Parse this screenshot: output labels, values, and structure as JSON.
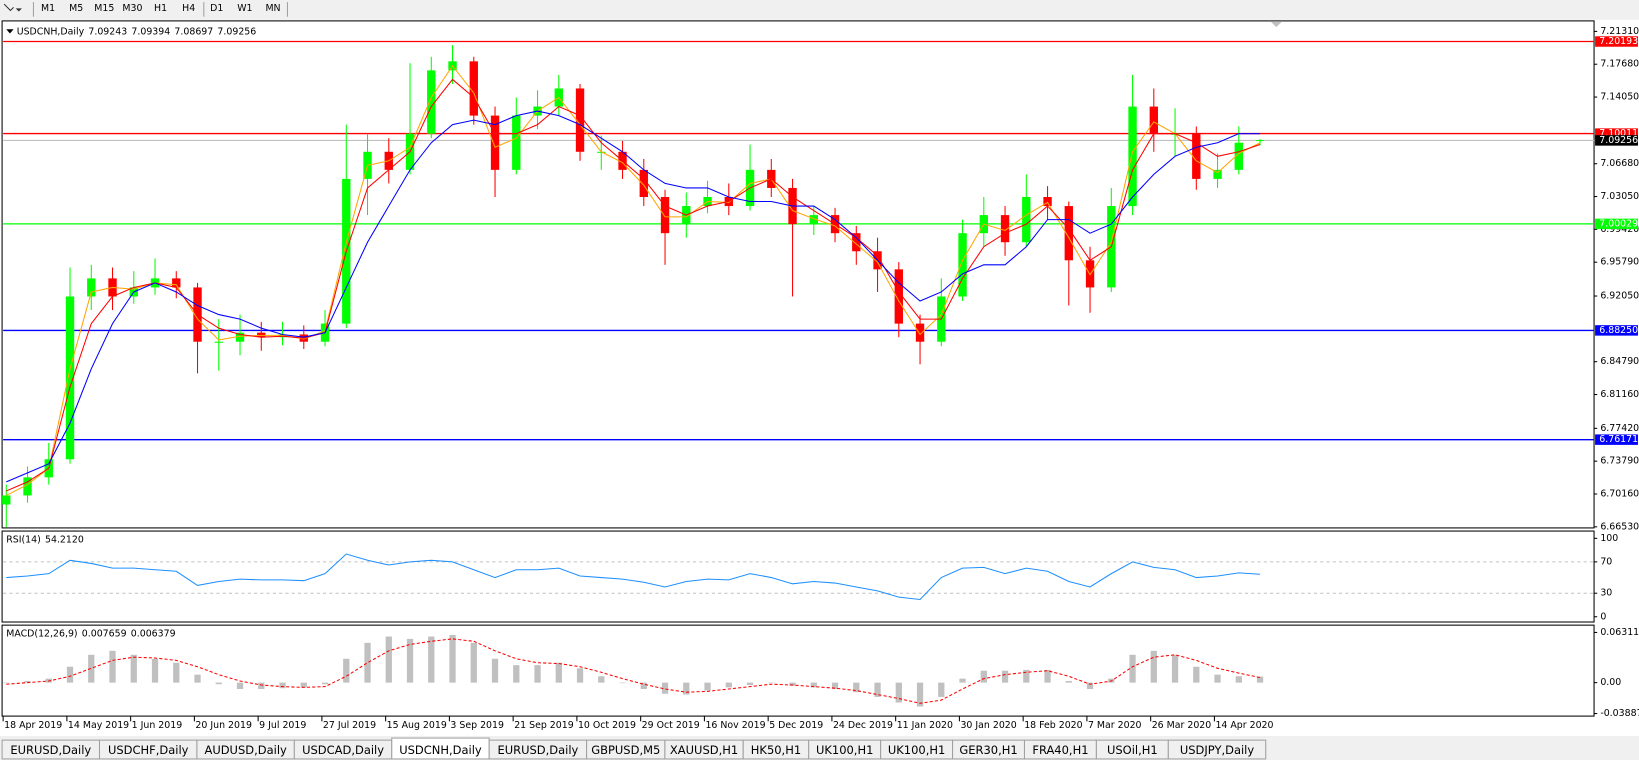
{
  "toolbar": {
    "timeframes": [
      "M1",
      "M5",
      "M15",
      "M30",
      "H1",
      "H4",
      "D1",
      "W1",
      "MN"
    ]
  },
  "chart_data": {
    "type": "candlestick",
    "symbol": "USDCNH,Daily",
    "header_values": [
      7.09243,
      7.09394,
      7.08697,
      7.09256
    ],
    "categories": [
      "18 Apr 2019",
      null,
      null,
      "14 May 2019",
      null,
      null,
      "1 Jun 2019",
      null,
      null,
      "20 Jun 2019",
      null,
      null,
      "9 Jul 2019",
      null,
      null,
      "27 Jul 2019",
      null,
      null,
      "15 Aug 2019",
      null,
      null,
      "3 Sep 2019",
      null,
      null,
      "21 Sep 2019",
      null,
      null,
      "10 Oct 2019",
      null,
      null,
      "29 Oct 2019",
      null,
      null,
      "16 Nov 2019",
      null,
      null,
      "5 Dec 2019",
      null,
      null,
      "24 Dec 2019",
      null,
      null,
      "11 Jan 2020",
      null,
      null,
      "30 Jan 2020",
      null,
      null,
      "18 Feb 2020",
      null,
      null,
      "7 Mar 2020",
      null,
      null,
      "26 Mar 2020",
      null,
      null,
      "14 Apr 2020",
      null,
      null
    ],
    "ohlc": [
      [
        6.69,
        6.712,
        6.665,
        6.7
      ],
      [
        6.7,
        6.732,
        6.692,
        6.72
      ],
      [
        6.72,
        6.758,
        6.712,
        6.74
      ],
      [
        6.74,
        6.952,
        6.735,
        6.92
      ],
      [
        6.92,
        6.955,
        6.905,
        6.94
      ],
      [
        6.94,
        6.952,
        6.905,
        6.92
      ],
      [
        6.92,
        6.948,
        6.912,
        6.93
      ],
      [
        6.93,
        6.962,
        6.922,
        6.94
      ],
      [
        6.94,
        6.948,
        6.918,
        6.93
      ],
      [
        6.93,
        6.935,
        6.835,
        6.87
      ],
      [
        6.87,
        6.895,
        6.838,
        6.87
      ],
      [
        6.87,
        6.9,
        6.855,
        6.88
      ],
      [
        6.88,
        6.892,
        6.86,
        6.875
      ],
      [
        6.875,
        6.892,
        6.866,
        6.878
      ],
      [
        6.878,
        6.888,
        6.862,
        6.87
      ],
      [
        6.87,
        6.905,
        6.865,
        6.89
      ],
      [
        6.89,
        7.11,
        6.885,
        7.05
      ],
      [
        7.05,
        7.1,
        7.01,
        7.08
      ],
      [
        7.08,
        7.095,
        7.045,
        7.06
      ],
      [
        7.06,
        7.178,
        7.055,
        7.1
      ],
      [
        7.1,
        7.185,
        7.095,
        7.17
      ],
      [
        7.17,
        7.198,
        7.155,
        7.18
      ],
      [
        7.18,
        7.185,
        7.11,
        7.12
      ],
      [
        7.12,
        7.13,
        7.03,
        7.06
      ],
      [
        7.06,
        7.14,
        7.055,
        7.12
      ],
      [
        7.12,
        7.148,
        7.105,
        7.13
      ],
      [
        7.13,
        7.165,
        7.12,
        7.15
      ],
      [
        7.15,
        7.155,
        7.07,
        7.08
      ],
      [
        7.08,
        7.098,
        7.06,
        7.08
      ],
      [
        7.08,
        7.092,
        7.05,
        7.06
      ],
      [
        7.06,
        7.072,
        7.02,
        7.03
      ],
      [
        7.03,
        7.038,
        6.955,
        6.99
      ],
      [
        7.0,
        7.035,
        6.985,
        7.02
      ],
      [
        7.02,
        7.048,
        7.012,
        7.03
      ],
      [
        7.03,
        7.045,
        7.01,
        7.02
      ],
      [
        7.02,
        7.088,
        7.015,
        7.06
      ],
      [
        7.06,
        7.072,
        7.03,
        7.04
      ],
      [
        7.04,
        7.05,
        6.92,
        7.0
      ],
      [
        7.0,
        7.02,
        6.988,
        7.01
      ],
      [
        7.01,
        7.018,
        6.98,
        6.99
      ],
      [
        6.99,
        6.998,
        6.955,
        6.97
      ],
      [
        6.97,
        6.985,
        6.925,
        6.95
      ],
      [
        6.95,
        6.958,
        6.875,
        6.89
      ],
      [
        6.89,
        6.9,
        6.845,
        6.87
      ],
      [
        6.87,
        6.94,
        6.865,
        6.92
      ],
      [
        6.92,
        7.005,
        6.915,
        6.99
      ],
      [
        6.99,
        7.03,
        6.975,
        7.01
      ],
      [
        7.01,
        7.02,
        6.965,
        6.98
      ],
      [
        6.98,
        7.055,
        6.975,
        7.03
      ],
      [
        7.03,
        7.042,
        7.005,
        7.02
      ],
      [
        7.02,
        7.025,
        6.91,
        6.96
      ],
      [
        6.96,
        6.975,
        6.902,
        6.93
      ],
      [
        6.93,
        7.04,
        6.925,
        7.02
      ],
      [
        7.02,
        7.165,
        7.01,
        7.13
      ],
      [
        7.13,
        7.15,
        7.08,
        7.1
      ],
      [
        7.1,
        7.128,
        7.075,
        7.1
      ],
      [
        7.1,
        7.108,
        7.038,
        7.05
      ],
      [
        7.05,
        7.078,
        7.04,
        7.06
      ],
      [
        7.06,
        7.108,
        7.055,
        7.09
      ],
      [
        7.092,
        7.094,
        7.087,
        7.093
      ]
    ],
    "bull_color": "#00ff00",
    "bear_color": "#ff0000",
    "ylim": [
      6.6641,
      7.2247
    ],
    "yticks": [
      {
        "value": 7.2131,
        "label": "7.21310"
      },
      {
        "value": 7.1768,
        "label": "7.17680"
      },
      {
        "value": 7.1405,
        "label": "7.14050"
      },
      {
        "value": 7.0668,
        "label": "7.06680"
      },
      {
        "value": 7.0305,
        "label": "7.03050"
      },
      {
        "value": 6.9942,
        "label": "6.99420"
      },
      {
        "value": 6.9579,
        "label": "6.95790"
      },
      {
        "value": 6.9205,
        "label": "6.92050"
      },
      {
        "value": 6.8479,
        "label": "6.84790"
      },
      {
        "value": 6.8116,
        "label": "6.81160"
      },
      {
        "value": 6.7742,
        "label": "6.77420"
      },
      {
        "value": 6.7379,
        "label": "6.73790"
      },
      {
        "value": 6.7016,
        "label": "6.70160"
      },
      {
        "value": 6.6653,
        "label": "6.66530"
      }
    ],
    "overlays": [
      {
        "color": "#ffa500",
        "values": [
          6.7,
          6.712,
          6.73,
          6.84,
          6.925,
          6.93,
          6.928,
          6.935,
          6.933,
          6.895,
          6.872,
          6.876,
          6.877,
          6.877,
          6.873,
          6.882,
          6.98,
          7.065,
          7.07,
          7.085,
          7.14,
          7.175,
          7.145,
          7.085,
          7.095,
          7.125,
          7.14,
          7.11,
          7.08,
          7.068,
          7.043,
          7.008,
          7.008,
          7.025,
          7.024,
          7.045,
          7.05,
          7.015,
          7.006,
          6.998,
          6.978,
          6.958,
          6.915,
          6.878,
          6.9,
          6.96,
          7.0,
          6.993,
          7.01,
          7.024,
          6.985,
          6.944,
          6.98,
          7.08,
          7.113,
          7.1,
          7.07,
          7.057,
          7.078,
          7.09
        ]
      },
      {
        "color": "#ff0000",
        "values": [
          6.705,
          6.715,
          6.73,
          6.82,
          6.89,
          6.92,
          6.93,
          6.935,
          6.93,
          6.9,
          6.885,
          6.878,
          6.875,
          6.876,
          6.874,
          6.88,
          6.97,
          7.04,
          7.06,
          7.08,
          7.13,
          7.16,
          7.14,
          7.1,
          7.1,
          7.11,
          7.13,
          7.12,
          7.09,
          7.07,
          7.05,
          7.02,
          7.01,
          7.02,
          7.025,
          7.04,
          7.05,
          7.03,
          7.015,
          7.0,
          6.985,
          6.965,
          6.925,
          6.895,
          6.895,
          6.94,
          6.975,
          6.99,
          7.0,
          7.02,
          6.995,
          6.96,
          6.975,
          7.06,
          7.1,
          7.1,
          7.09,
          7.075,
          7.08,
          7.088
        ]
      },
      {
        "color": "#0000ff",
        "values": [
          6.715,
          6.725,
          6.735,
          6.78,
          6.84,
          6.89,
          6.925,
          6.935,
          6.925,
          6.91,
          6.9,
          6.895,
          6.885,
          6.878,
          6.875,
          6.88,
          6.93,
          6.98,
          7.02,
          7.06,
          7.09,
          7.11,
          7.115,
          7.11,
          7.12,
          7.125,
          7.12,
          7.11,
          7.095,
          7.08,
          7.06,
          7.045,
          7.04,
          7.04,
          7.03,
          7.025,
          7.025,
          7.02,
          7.02,
          7.005,
          6.985,
          6.96,
          6.935,
          6.915,
          6.925,
          6.945,
          6.955,
          6.955,
          6.975,
          7.005,
          7.005,
          6.99,
          7.0,
          7.03,
          7.055,
          7.075,
          7.085,
          7.09,
          7.1,
          7.1
        ]
      }
    ],
    "levels": [
      {
        "value": 7.20193,
        "color": "#ff0000"
      },
      {
        "value": 7.10011,
        "color": "#ff0000"
      },
      {
        "value": 7.00029,
        "label": "7.00029",
        "color": "#00ff00"
      },
      {
        "value": 6.8825,
        "label": "6.88250",
        "color": "#0000ff"
      },
      {
        "value": 6.76171,
        "color": "#0000ff"
      }
    ],
    "bid": 7.09256,
    "rsi": {
      "title": "RSI(14)",
      "current": {
        "value": 54.212,
        "label": "54.2120"
      },
      "color": "#1e90ff",
      "values": [
        50,
        52,
        55,
        72,
        68,
        62,
        62,
        60,
        58,
        40,
        45,
        48,
        47,
        47,
        46,
        55,
        80,
        72,
        66,
        70,
        72,
        70,
        60,
        50,
        60,
        60,
        62,
        52,
        50,
        48,
        44,
        38,
        45,
        48,
        47,
        55,
        50,
        42,
        45,
        43,
        38,
        33,
        25,
        22,
        50,
        62,
        63,
        55,
        62,
        58,
        45,
        38,
        55,
        70,
        63,
        60,
        50,
        52,
        56,
        54.2
      ],
      "ylim": [
        -6.7,
        109.3
      ],
      "yticks": [
        100,
        70,
        30,
        0
      ],
      "levels": [
        70,
        30
      ]
    },
    "macd": {
      "title": "MACD(12,26,9)",
      "current": [
        0.007659,
        0.006379
      ],
      "hist_color": "#c0c0c0",
      "signal_color": "#ff0000",
      "histogram": [
        0.0,
        0.002,
        0.005,
        0.02,
        0.035,
        0.04,
        0.035,
        0.03,
        0.025,
        0.01,
        -0.002,
        -0.008,
        -0.008,
        -0.007,
        -0.006,
        -0.002,
        0.03,
        0.05,
        0.058,
        0.055,
        0.058,
        0.06,
        0.05,
        0.03,
        0.022,
        0.022,
        0.025,
        0.018,
        0.008,
        0.0,
        -0.008,
        -0.014,
        -0.015,
        -0.01,
        -0.006,
        -0.003,
        0.0,
        -0.004,
        -0.006,
        -0.008,
        -0.012,
        -0.018,
        -0.025,
        -0.03,
        -0.018,
        0.005,
        0.015,
        0.015,
        0.016,
        0.016,
        0.002,
        -0.008,
        0.005,
        0.035,
        0.04,
        0.035,
        0.02,
        0.01,
        0.008,
        0.0077
      ],
      "signal": [
        -0.002,
        0.0,
        0.002,
        0.008,
        0.018,
        0.028,
        0.032,
        0.031,
        0.028,
        0.02,
        0.01,
        0.002,
        -0.003,
        -0.005,
        -0.006,
        -0.005,
        0.008,
        0.025,
        0.04,
        0.048,
        0.052,
        0.055,
        0.052,
        0.04,
        0.03,
        0.025,
        0.024,
        0.02,
        0.013,
        0.005,
        -0.002,
        -0.008,
        -0.012,
        -0.011,
        -0.008,
        -0.005,
        -0.002,
        -0.003,
        -0.005,
        -0.007,
        -0.01,
        -0.015,
        -0.02,
        -0.026,
        -0.022,
        -0.008,
        0.005,
        0.01,
        0.013,
        0.015,
        0.008,
        -0.002,
        0.002,
        0.02,
        0.032,
        0.035,
        0.028,
        0.018,
        0.012,
        0.0064
      ],
      "ylim": [
        -0.0421,
        0.0723
      ],
      "yticks": [
        0.063113,
        {
          "value": 0,
          "label": "0.00"
        },
        -0.038872
      ]
    }
  },
  "tabs": {
    "items": [
      "EURUSD,Daily",
      "USDCHF,Daily",
      "AUDUSD,Daily",
      "USDCAD,Daily",
      "USDCNH,Daily",
      "EURUSD,Daily",
      "GBPUSD,M5",
      "XAUUSD,H1",
      "HK50,H1",
      "UK100,H1",
      "UK100,H1",
      "GER30,H1",
      "FRA40,H1",
      "USOil,H1",
      "USDJPY,Daily"
    ],
    "active": 4
  }
}
